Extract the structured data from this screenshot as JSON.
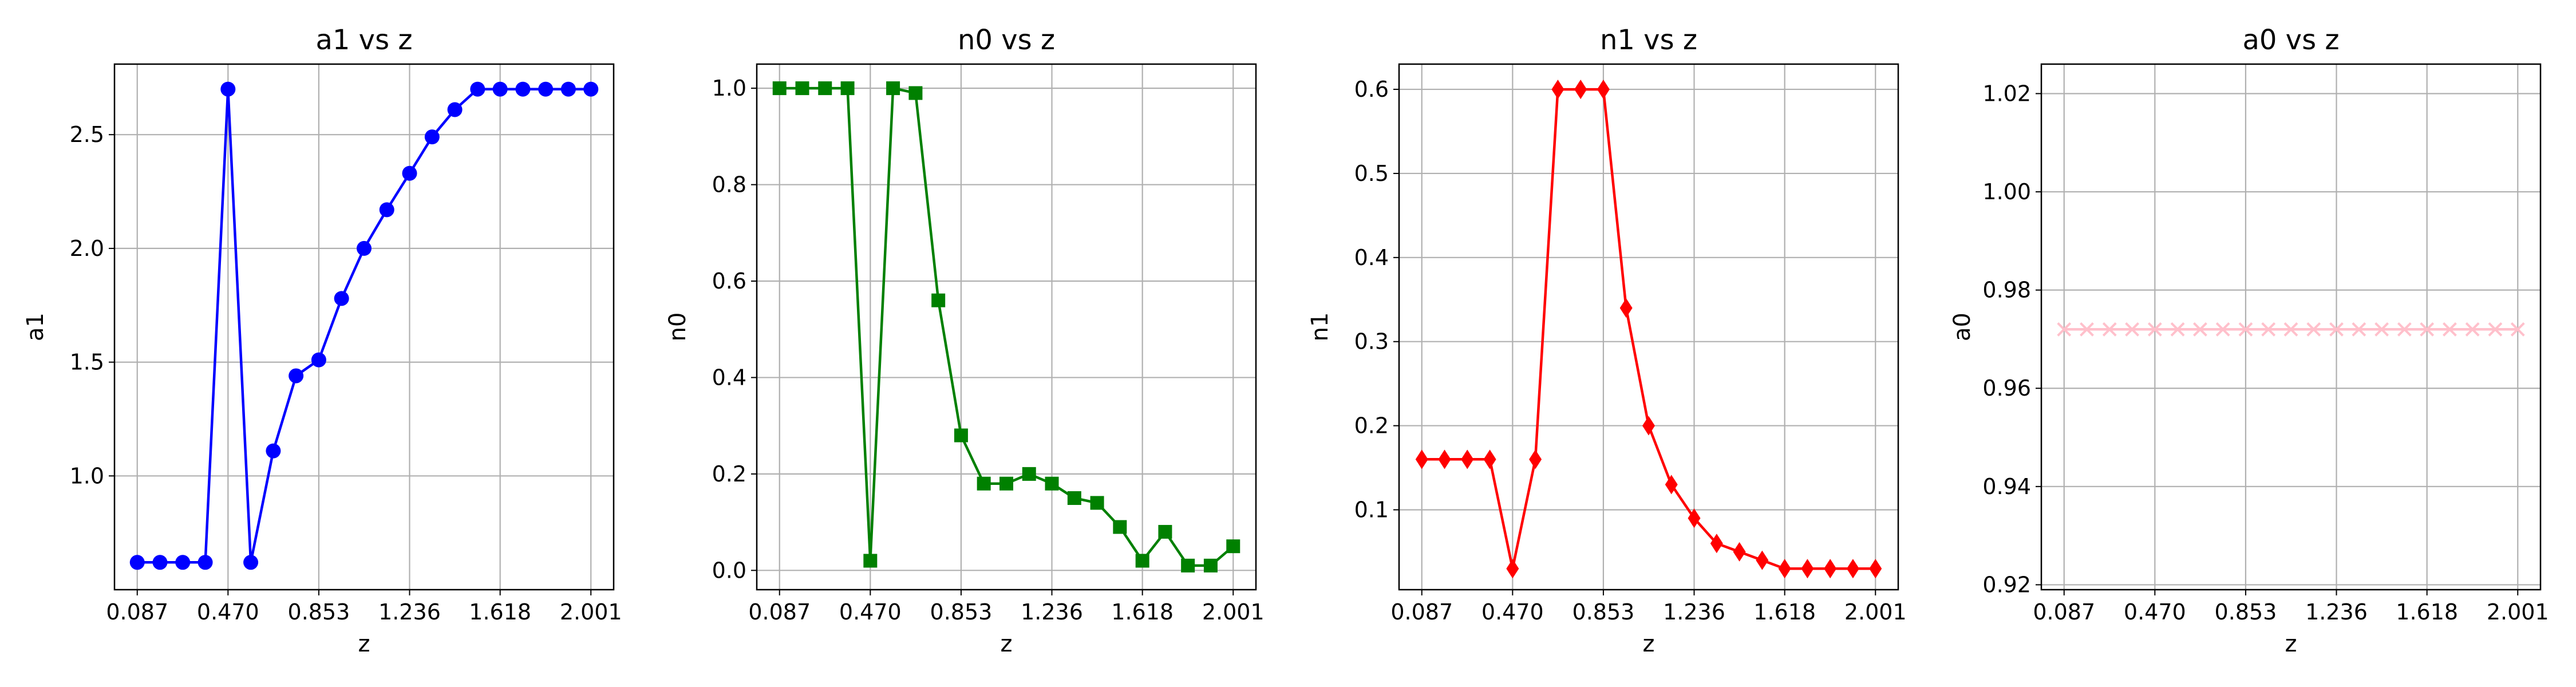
{
  "chart_data": [
    {
      "type": "line",
      "title": "a1 vs z",
      "xlabel": "z",
      "ylabel": "a1",
      "xticks": [
        "0.087",
        "0.470",
        "0.853",
        "1.236",
        "1.618",
        "2.001"
      ],
      "xtick_values": [
        0.087,
        0.47,
        0.853,
        1.236,
        1.618,
        2.001
      ],
      "yticks": [
        "1.0",
        "1.5",
        "2.0",
        "2.5"
      ],
      "ytick_values": [
        1.0,
        1.5,
        2.0,
        2.5
      ],
      "xlim": [
        -0.009,
        2.097
      ],
      "ylim": [
        0.5,
        2.81
      ],
      "grid": true,
      "color": "#0000ff",
      "marker": "circle",
      "x": [
        0.087,
        0.183,
        0.279,
        0.374,
        0.47,
        0.566,
        0.661,
        0.757,
        0.853,
        0.949,
        1.044,
        1.14,
        1.236,
        1.331,
        1.427,
        1.523,
        1.618,
        1.714,
        1.81,
        1.906,
        2.001
      ],
      "y": [
        0.62,
        0.62,
        0.62,
        0.62,
        2.7,
        0.62,
        1.11,
        1.44,
        1.51,
        1.78,
        2.0,
        2.17,
        2.33,
        2.49,
        2.61,
        2.7,
        2.7,
        2.7,
        2.7,
        2.7,
        2.7
      ]
    },
    {
      "type": "line",
      "title": "n0 vs z",
      "xlabel": "z",
      "ylabel": "n0",
      "xticks": [
        "0.087",
        "0.470",
        "0.853",
        "1.236",
        "1.618",
        "2.001"
      ],
      "xtick_values": [
        0.087,
        0.47,
        0.853,
        1.236,
        1.618,
        2.001
      ],
      "yticks": [
        "0.0",
        "0.2",
        "0.4",
        "0.6",
        "0.8",
        "1.0"
      ],
      "ytick_values": [
        0.0,
        0.2,
        0.4,
        0.6,
        0.8,
        1.0
      ],
      "xlim": [
        -0.009,
        2.097
      ],
      "ylim": [
        -0.04,
        1.05
      ],
      "grid": true,
      "color": "#008000",
      "marker": "square",
      "x": [
        0.087,
        0.183,
        0.279,
        0.374,
        0.47,
        0.566,
        0.661,
        0.757,
        0.853,
        0.949,
        1.044,
        1.14,
        1.236,
        1.331,
        1.427,
        1.523,
        1.618,
        1.714,
        1.81,
        1.906,
        2.001
      ],
      "y": [
        1.0,
        1.0,
        1.0,
        1.0,
        0.02,
        1.0,
        0.99,
        0.56,
        0.28,
        0.18,
        0.18,
        0.2,
        0.18,
        0.15,
        0.14,
        0.09,
        0.02,
        0.08,
        0.01,
        0.01,
        0.05
      ]
    },
    {
      "type": "line",
      "title": "n1 vs z",
      "xlabel": "z",
      "ylabel": "n1",
      "xticks": [
        "0.087",
        "0.470",
        "0.853",
        "1.236",
        "1.618",
        "2.001"
      ],
      "xtick_values": [
        0.087,
        0.47,
        0.853,
        1.236,
        1.618,
        2.001
      ],
      "yticks": [
        "0.1",
        "0.2",
        "0.3",
        "0.4",
        "0.5",
        "0.6"
      ],
      "ytick_values": [
        0.1,
        0.2,
        0.3,
        0.4,
        0.5,
        0.6
      ],
      "xlim": [
        -0.009,
        2.097
      ],
      "ylim": [
        0.005,
        0.63
      ],
      "grid": true,
      "color": "#ff0000",
      "marker": "diamond",
      "x": [
        0.087,
        0.183,
        0.279,
        0.374,
        0.47,
        0.566,
        0.661,
        0.757,
        0.853,
        0.949,
        1.044,
        1.14,
        1.236,
        1.331,
        1.427,
        1.523,
        1.618,
        1.714,
        1.81,
        1.906,
        2.001
      ],
      "y": [
        0.16,
        0.16,
        0.16,
        0.16,
        0.03,
        0.16,
        0.6,
        0.6,
        0.6,
        0.34,
        0.2,
        0.13,
        0.09,
        0.06,
        0.05,
        0.04,
        0.03,
        0.03,
        0.03,
        0.03,
        0.03
      ]
    },
    {
      "type": "line",
      "title": "a0 vs z",
      "xlabel": "z",
      "ylabel": "a0",
      "xticks": [
        "0.087",
        "0.470",
        "0.853",
        "1.236",
        "1.618",
        "2.001"
      ],
      "xtick_values": [
        0.087,
        0.47,
        0.853,
        1.236,
        1.618,
        2.001
      ],
      "yticks": [
        "0.92",
        "0.94",
        "0.96",
        "0.98",
        "1.00",
        "1.02"
      ],
      "ytick_values": [
        0.92,
        0.94,
        0.96,
        0.98,
        1.0,
        1.02
      ],
      "xlim": [
        -0.009,
        2.097
      ],
      "ylim": [
        0.919,
        1.026
      ],
      "grid": true,
      "color": "#ffc0cb",
      "marker": "x",
      "x": [
        0.087,
        0.183,
        0.279,
        0.374,
        0.47,
        0.566,
        0.661,
        0.757,
        0.853,
        0.949,
        1.044,
        1.14,
        1.236,
        1.331,
        1.427,
        1.523,
        1.618,
        1.714,
        1.81,
        1.906,
        2.001
      ],
      "y": [
        0.972,
        0.972,
        0.972,
        0.972,
        0.972,
        0.972,
        0.972,
        0.972,
        0.972,
        0.972,
        0.972,
        0.972,
        0.972,
        0.972,
        0.972,
        0.972,
        0.972,
        0.972,
        0.972,
        0.972,
        0.972
      ]
    }
  ]
}
